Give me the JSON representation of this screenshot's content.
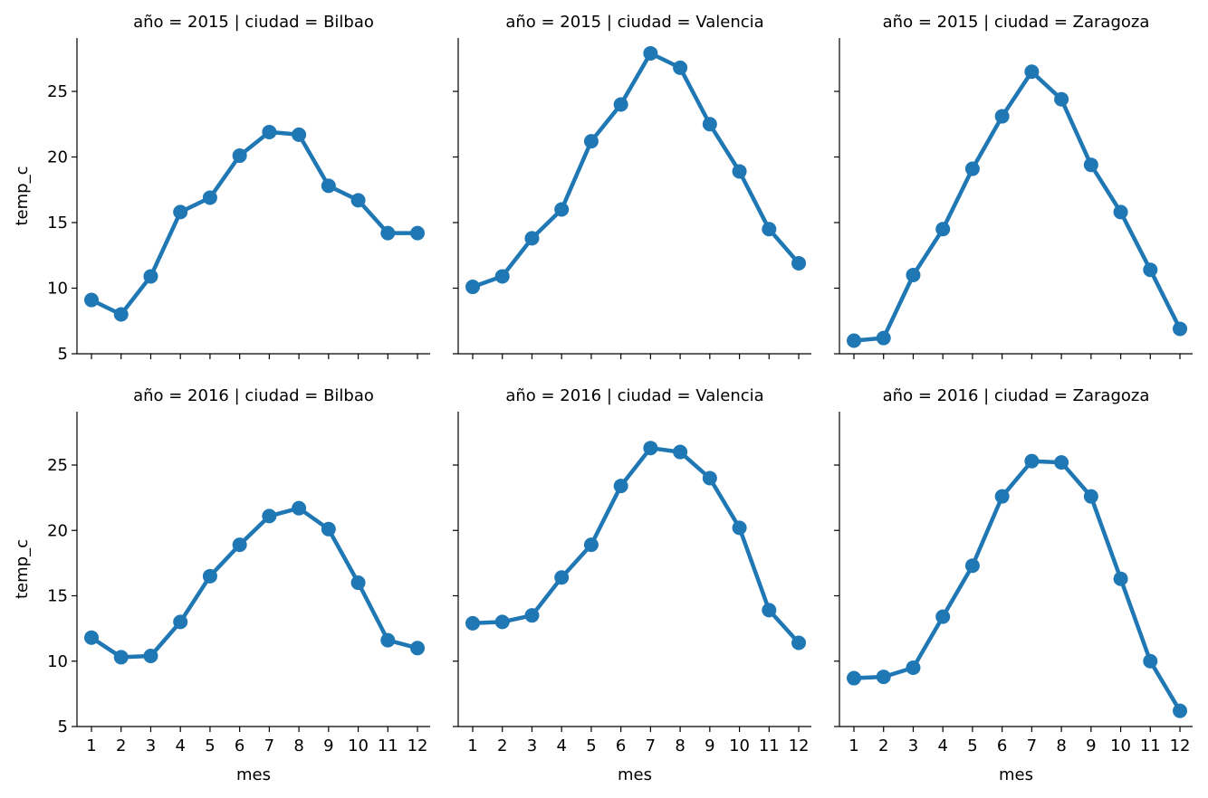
{
  "figure": {
    "line_color": "#1f77b4"
  },
  "chart_data": {
    "type": "line",
    "categories": [
      "1",
      "2",
      "3",
      "4",
      "5",
      "6",
      "7",
      "8",
      "9",
      "10",
      "11",
      "12"
    ],
    "xlabel": "mes",
    "ylabel": "temp_c",
    "yticks": [
      5,
      10,
      15,
      20,
      25
    ],
    "ylim": [
      5,
      29
    ],
    "grid": false,
    "panels": [
      {
        "title": "año = 2015 | ciudad = Bilbao",
        "values": [
          9.1,
          8.0,
          10.9,
          15.8,
          16.9,
          20.1,
          21.9,
          21.7,
          17.8,
          16.7,
          14.2,
          14.2
        ]
      },
      {
        "title": "año = 2015 | ciudad = Valencia",
        "values": [
          10.1,
          10.9,
          13.8,
          16.0,
          21.2,
          24.0,
          27.9,
          26.8,
          22.5,
          18.9,
          14.5,
          11.9
        ]
      },
      {
        "title": "año = 2015 | ciudad = Zaragoza",
        "values": [
          6.0,
          6.2,
          11.0,
          14.5,
          19.1,
          23.1,
          26.5,
          24.4,
          19.4,
          15.8,
          11.4,
          6.9
        ]
      },
      {
        "title": "año = 2016 | ciudad = Bilbao",
        "values": [
          11.8,
          10.3,
          10.4,
          13.0,
          16.5,
          18.9,
          21.1,
          21.7,
          20.1,
          16.0,
          11.6,
          11.0
        ]
      },
      {
        "title": "año = 2016 | ciudad = Valencia",
        "values": [
          12.9,
          13.0,
          13.5,
          16.4,
          18.9,
          23.4,
          26.3,
          26.0,
          24.0,
          20.2,
          13.9,
          11.4
        ]
      },
      {
        "title": "año = 2016 | ciudad = Zaragoza",
        "values": [
          8.7,
          8.8,
          9.5,
          13.4,
          17.3,
          22.6,
          25.3,
          25.2,
          22.6,
          16.3,
          10.0,
          6.2
        ]
      }
    ]
  }
}
